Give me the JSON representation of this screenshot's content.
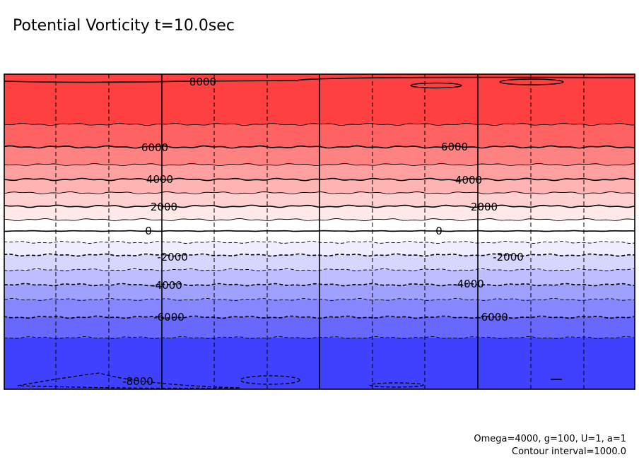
{
  "chart_data": {
    "type": "heatmap",
    "title": "Potential Vorticity t=10.0sec",
    "contour_interval": 1000,
    "levels": [
      8000,
      7000,
      6000,
      5000,
      4000,
      3000,
      2000,
      1000,
      0,
      -1000,
      -2000,
      -3000,
      -4000,
      -5000,
      -6000,
      -7000,
      -8000
    ],
    "colors": {
      "above_7000": "#ff4040",
      "6000_7000": "#ff6262",
      "5000_6000": "#ff8282",
      "4000_5000": "#ffa0a0",
      "3000_4000": "#ffb4b4",
      "2000_3000": "#ffd0d0",
      "1000_2000": "#ffe8e8",
      "0_1000": "#ffffff",
      "-1000_0": "#ffffff",
      "-2000_-1000": "#eeeeff",
      "-3000_-2000": "#d6d6ff",
      "-4000_-3000": "#bdbdff",
      "-5000_-4000": "#a0a0ff",
      "-6000_-5000": "#8686ff",
      "-7000_-6000": "#6868ff",
      "below_-7000": "#4040ff"
    },
    "contour_labels": [
      {
        "value": "8000"
      },
      {
        "value": "6000"
      },
      {
        "value": "6000"
      },
      {
        "value": "4000"
      },
      {
        "value": "4000"
      },
      {
        "value": "2000"
      },
      {
        "value": "2000"
      },
      {
        "value": "0"
      },
      {
        "value": "0"
      },
      {
        "value": "-2000"
      },
      {
        "value": "-2000"
      },
      {
        "value": "-4000"
      },
      {
        "value": "-4000"
      },
      {
        "value": "-6000"
      },
      {
        "value": "-6000"
      },
      {
        "value": "-8000"
      }
    ],
    "grid": true,
    "notes": [
      "Omega=4000, g=100, U=1, a=1",
      "Contour interval=1000.0"
    ]
  }
}
